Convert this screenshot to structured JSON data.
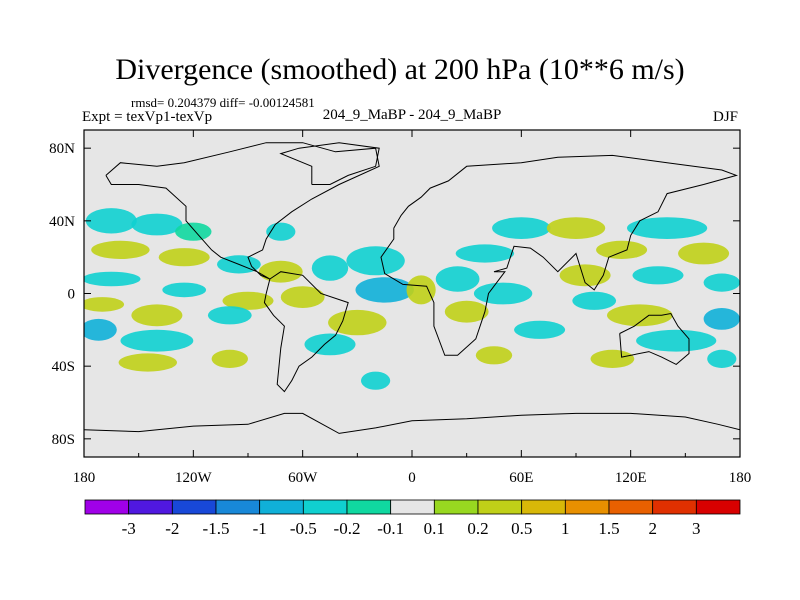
{
  "header": {
    "title": "Divergence (smoothed) at 200 hPa (10**6 m/s)",
    "stats": "rmsd= 0.204379 diff= -0.00124581",
    "experiment": "Expt = texVp1-texVp",
    "case_label": "204_9_MaBP - 204_9_MaBP",
    "season": "DJF"
  },
  "chart_data": {
    "type": "heatmap",
    "title": "Divergence (smoothed) at 200 hPa (10**6 m/s)",
    "x_range": [
      -180,
      180
    ],
    "y_range": [
      -90,
      90
    ],
    "x_ticks": [
      {
        "value": -180,
        "label": "180"
      },
      {
        "value": -120,
        "label": "120W"
      },
      {
        "value": -60,
        "label": "60W"
      },
      {
        "value": 0,
        "label": "0"
      },
      {
        "value": 60,
        "label": "60E"
      },
      {
        "value": 120,
        "label": "120E"
      },
      {
        "value": 180,
        "label": "180"
      }
    ],
    "y_ticks": [
      {
        "value": 80,
        "label": "80N"
      },
      {
        "value": 40,
        "label": "40N"
      },
      {
        "value": 0,
        "label": "0"
      },
      {
        "value": -40,
        "label": "40S"
      },
      {
        "value": -80,
        "label": "80S"
      }
    ],
    "background_color": "#e6e6e6",
    "colorbar": {
      "colors": [
        "#a000e8",
        "#5018e0",
        "#1848d8",
        "#1888d8",
        "#10b0d8",
        "#10d0d0",
        "#10d8a0",
        "#e6e6e6",
        "#98d820",
        "#c0d018",
        "#d8b808",
        "#e89000",
        "#e86000",
        "#e03000",
        "#d80000"
      ],
      "labels": [
        "-3",
        "-2",
        "-1.5",
        "-1",
        "-0.5",
        "-0.2",
        "-0.1",
        "0.1",
        "0.2",
        "0.5",
        "1",
        "1.5",
        "2",
        "3"
      ]
    },
    "anomalies": [
      {
        "lon": -165,
        "lat": 40,
        "rx": 14,
        "ry": 7,
        "level": 5
      },
      {
        "lon": -140,
        "lat": 38,
        "rx": 14,
        "ry": 6,
        "level": 5
      },
      {
        "lon": -120,
        "lat": 34,
        "rx": 10,
        "ry": 5,
        "level": 6
      },
      {
        "lon": -160,
        "lat": 24,
        "rx": 16,
        "ry": 5,
        "level": 9
      },
      {
        "lon": -125,
        "lat": 20,
        "rx": 14,
        "ry": 5,
        "level": 9
      },
      {
        "lon": -165,
        "lat": 8,
        "rx": 16,
        "ry": 4,
        "level": 5
      },
      {
        "lon": -125,
        "lat": 2,
        "rx": 12,
        "ry": 4,
        "level": 5
      },
      {
        "lon": -170,
        "lat": -6,
        "rx": 12,
        "ry": 4,
        "level": 9
      },
      {
        "lon": -140,
        "lat": -12,
        "rx": 14,
        "ry": 6,
        "level": 9
      },
      {
        "lon": -172,
        "lat": -20,
        "rx": 10,
        "ry": 6,
        "level": 4
      },
      {
        "lon": -140,
        "lat": -26,
        "rx": 20,
        "ry": 6,
        "level": 5
      },
      {
        "lon": -145,
        "lat": -38,
        "rx": 16,
        "ry": 5,
        "level": 9
      },
      {
        "lon": -100,
        "lat": -36,
        "rx": 10,
        "ry": 5,
        "level": 9
      },
      {
        "lon": -72,
        "lat": 34,
        "rx": 8,
        "ry": 5,
        "level": 5
      },
      {
        "lon": -95,
        "lat": 16,
        "rx": 12,
        "ry": 5,
        "level": 5
      },
      {
        "lon": -72,
        "lat": 12,
        "rx": 12,
        "ry": 6,
        "level": 9
      },
      {
        "lon": -45,
        "lat": 14,
        "rx": 10,
        "ry": 7,
        "level": 5
      },
      {
        "lon": -20,
        "lat": 18,
        "rx": 16,
        "ry": 8,
        "level": 5
      },
      {
        "lon": -15,
        "lat": 2,
        "rx": 16,
        "ry": 7,
        "level": 4
      },
      {
        "lon": -90,
        "lat": -4,
        "rx": 14,
        "ry": 5,
        "level": 9
      },
      {
        "lon": -60,
        "lat": -2,
        "rx": 12,
        "ry": 6,
        "level": 9
      },
      {
        "lon": -30,
        "lat": -16,
        "rx": 16,
        "ry": 7,
        "level": 9
      },
      {
        "lon": -45,
        "lat": -28,
        "rx": 14,
        "ry": 6,
        "level": 5
      },
      {
        "lon": -20,
        "lat": -48,
        "rx": 8,
        "ry": 5,
        "level": 5
      },
      {
        "lon": -100,
        "lat": -12,
        "rx": 12,
        "ry": 5,
        "level": 5
      },
      {
        "lon": 5,
        "lat": 2,
        "rx": 8,
        "ry": 8,
        "level": 9
      },
      {
        "lon": 25,
        "lat": 8,
        "rx": 12,
        "ry": 7,
        "level": 5
      },
      {
        "lon": 50,
        "lat": 0,
        "rx": 16,
        "ry": 6,
        "level": 5
      },
      {
        "lon": 40,
        "lat": 22,
        "rx": 16,
        "ry": 5,
        "level": 5
      },
      {
        "lon": 30,
        "lat": -10,
        "rx": 12,
        "ry": 6,
        "level": 9
      },
      {
        "lon": 70,
        "lat": -20,
        "rx": 14,
        "ry": 5,
        "level": 5
      },
      {
        "lon": 45,
        "lat": -34,
        "rx": 10,
        "ry": 5,
        "level": 9
      },
      {
        "lon": 60,
        "lat": 36,
        "rx": 16,
        "ry": 6,
        "level": 5
      },
      {
        "lon": 90,
        "lat": 36,
        "rx": 16,
        "ry": 6,
        "level": 9
      },
      {
        "lon": 140,
        "lat": 36,
        "rx": 22,
        "ry": 6,
        "level": 5
      },
      {
        "lon": 115,
        "lat": 24,
        "rx": 14,
        "ry": 5,
        "level": 9
      },
      {
        "lon": 160,
        "lat": 22,
        "rx": 14,
        "ry": 6,
        "level": 9
      },
      {
        "lon": 95,
        "lat": 10,
        "rx": 14,
        "ry": 6,
        "level": 9
      },
      {
        "lon": 135,
        "lat": 10,
        "rx": 14,
        "ry": 5,
        "level": 5
      },
      {
        "lon": 170,
        "lat": 6,
        "rx": 10,
        "ry": 5,
        "level": 5
      },
      {
        "lon": 100,
        "lat": -4,
        "rx": 12,
        "ry": 5,
        "level": 5
      },
      {
        "lon": 125,
        "lat": -12,
        "rx": 18,
        "ry": 6,
        "level": 9
      },
      {
        "lon": 170,
        "lat": -14,
        "rx": 10,
        "ry": 6,
        "level": 4
      },
      {
        "lon": 145,
        "lat": -26,
        "rx": 22,
        "ry": 6,
        "level": 5
      },
      {
        "lon": 110,
        "lat": -36,
        "rx": 12,
        "ry": 5,
        "level": 9
      },
      {
        "lon": 170,
        "lat": -36,
        "rx": 8,
        "ry": 5,
        "level": 5
      }
    ],
    "continents": {
      "north_america": [
        [
          -168,
          65
        ],
        [
          -160,
          72
        ],
        [
          -140,
          70
        ],
        [
          -125,
          72
        ],
        [
          -100,
          78
        ],
        [
          -80,
          83
        ],
        [
          -60,
          83
        ],
        [
          -42,
          78
        ],
        [
          -20,
          80
        ],
        [
          -18,
          70
        ],
        [
          -40,
          60
        ],
        [
          -55,
          52
        ],
        [
          -66,
          45
        ],
        [
          -75,
          38
        ],
        [
          -80,
          30
        ],
        [
          -82,
          24
        ],
        [
          -90,
          20
        ],
        [
          -88,
          15
        ],
        [
          -83,
          10
        ],
        [
          -78,
          8
        ],
        [
          -85,
          12
        ],
        [
          -95,
          16
        ],
        [
          -105,
          20
        ],
        [
          -110,
          24
        ],
        [
          -117,
          32
        ],
        [
          -124,
          40
        ],
        [
          -124,
          48
        ],
        [
          -135,
          58
        ],
        [
          -150,
          60
        ],
        [
          -165,
          60
        ],
        [
          -168,
          65
        ]
      ],
      "south_america": [
        [
          -78,
          8
        ],
        [
          -72,
          12
        ],
        [
          -60,
          10
        ],
        [
          -50,
          0
        ],
        [
          -35,
          -5
        ],
        [
          -38,
          -15
        ],
        [
          -42,
          -23
        ],
        [
          -48,
          -28
        ],
        [
          -55,
          -35
        ],
        [
          -62,
          -40
        ],
        [
          -66,
          -48
        ],
        [
          -70,
          -54
        ],
        [
          -74,
          -50
        ],
        [
          -73,
          -40
        ],
        [
          -72,
          -30
        ],
        [
          -70,
          -18
        ],
        [
          -76,
          -12
        ],
        [
          -81,
          -5
        ],
        [
          -80,
          0
        ],
        [
          -78,
          8
        ]
      ],
      "eurasia_africa": [
        [
          -10,
          36
        ],
        [
          -6,
          43
        ],
        [
          -2,
          48
        ],
        [
          5,
          53
        ],
        [
          10,
          58
        ],
        [
          20,
          62
        ],
        [
          30,
          70
        ],
        [
          60,
          72
        ],
        [
          80,
          75
        ],
        [
          110,
          76
        ],
        [
          140,
          72
        ],
        [
          170,
          68
        ],
        [
          178,
          65
        ],
        [
          160,
          60
        ],
        [
          140,
          55
        ],
        [
          135,
          45
        ],
        [
          125,
          40
        ],
        [
          120,
          32
        ],
        [
          118,
          24
        ],
        [
          108,
          20
        ],
        [
          105,
          10
        ],
        [
          100,
          2
        ],
        [
          95,
          6
        ],
        [
          90,
          22
        ],
        [
          80,
          12
        ],
        [
          72,
          20
        ],
        [
          65,
          25
        ],
        [
          56,
          26
        ],
        [
          52,
          14
        ],
        [
          45,
          12
        ],
        [
          51,
          12
        ],
        [
          42,
          0
        ],
        [
          40,
          -10
        ],
        [
          35,
          -25
        ],
        [
          25,
          -34
        ],
        [
          18,
          -34
        ],
        [
          12,
          -18
        ],
        [
          12,
          -5
        ],
        [
          8,
          4
        ],
        [
          -5,
          5
        ],
        [
          -15,
          11
        ],
        [
          -17,
          20
        ],
        [
          -10,
          30
        ],
        [
          -10,
          36
        ]
      ],
      "australia": [
        [
          114,
          -22
        ],
        [
          122,
          -18
        ],
        [
          130,
          -12
        ],
        [
          137,
          -12
        ],
        [
          142,
          -11
        ],
        [
          146,
          -18
        ],
        [
          152,
          -25
        ],
        [
          152,
          -33
        ],
        [
          145,
          -39
        ],
        [
          137,
          -35
        ],
        [
          130,
          -32
        ],
        [
          115,
          -35
        ],
        [
          114,
          -22
        ]
      ],
      "antarctica": [
        [
          -180,
          -75
        ],
        [
          -150,
          -76
        ],
        [
          -120,
          -73
        ],
        [
          -90,
          -72
        ],
        [
          -70,
          -66
        ],
        [
          -60,
          -66
        ],
        [
          -40,
          -77
        ],
        [
          -20,
          -74
        ],
        [
          0,
          -70
        ],
        [
          30,
          -69
        ],
        [
          60,
          -67
        ],
        [
          90,
          -66
        ],
        [
          120,
          -66
        ],
        [
          150,
          -68
        ],
        [
          168,
          -72
        ],
        [
          180,
          -75
        ]
      ],
      "greenland": [
        [
          -55,
          60
        ],
        [
          -45,
          60
        ],
        [
          -35,
          65
        ],
        [
          -20,
          70
        ],
        [
          -18,
          80
        ],
        [
          -40,
          83
        ],
        [
          -62,
          80
        ],
        [
          -72,
          77
        ],
        [
          -55,
          70
        ],
        [
          -55,
          60
        ]
      ]
    }
  }
}
